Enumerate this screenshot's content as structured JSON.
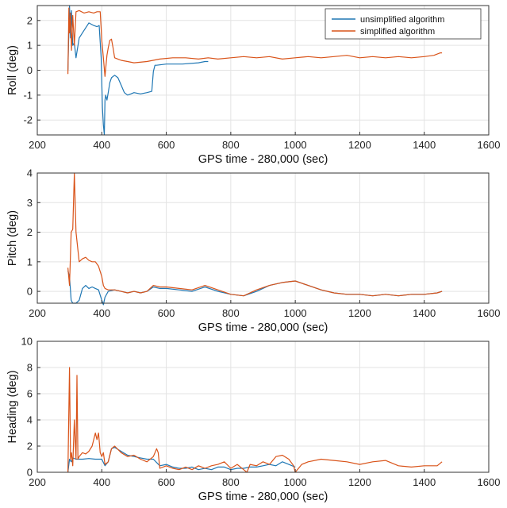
{
  "chart_data": [
    {
      "type": "line",
      "xlabel": "GPS time - 280,000 (sec)",
      "ylabel": "Roll (deg)",
      "xlim": [
        200,
        1600
      ],
      "ylim": [
        -2.6,
        2.6
      ],
      "xticks": [
        200,
        400,
        600,
        800,
        1000,
        1200,
        1400,
        1600
      ],
      "yticks": [
        -2,
        -1,
        0,
        1,
        2
      ],
      "grid": true,
      "legend": "top-right",
      "series": [
        {
          "name": "unsimplified algorithm",
          "color": "#1f77b4",
          "x": [
            295,
            300,
            303,
            306,
            310,
            315,
            320,
            330,
            345,
            360,
            375,
            385,
            392,
            398,
            402,
            405,
            408,
            410,
            412,
            416,
            420,
            425,
            430,
            440,
            450,
            460,
            470,
            480,
            490,
            500,
            520,
            540,
            555,
            560,
            565,
            570,
            600,
            650,
            700,
            720,
            730
          ],
          "values": [
            0.0,
            2.6,
            1.3,
            2.4,
            1.0,
            1.1,
            0.5,
            1.3,
            1.6,
            1.9,
            1.8,
            1.75,
            1.8,
            0.5,
            -1.5,
            -2.2,
            -2.6,
            -1.2,
            -1.0,
            -1.2,
            -0.9,
            -0.5,
            -0.3,
            -0.2,
            -0.3,
            -0.6,
            -0.9,
            -1.0,
            -0.95,
            -0.9,
            -0.95,
            -0.9,
            -0.85,
            -0.05,
            0.2,
            0.2,
            0.25,
            0.25,
            0.3,
            0.35,
            0.35
          ]
        },
        {
          "name": "simplified algorithm",
          "color": "#d95319",
          "x": [
            295,
            298,
            300,
            303,
            306,
            310,
            315,
            320,
            330,
            345,
            360,
            375,
            385,
            395,
            400,
            405,
            410,
            413,
            416,
            420,
            425,
            430,
            435,
            440,
            450,
            460,
            480,
            500,
            540,
            580,
            620,
            660,
            700,
            730,
            760,
            800,
            840,
            880,
            920,
            960,
            1000,
            1040,
            1080,
            1120,
            1160,
            1200,
            1240,
            1280,
            1320,
            1360,
            1400,
            1430,
            1450,
            1455
          ],
          "values": [
            -0.15,
            2.5,
            1.5,
            2.3,
            0.8,
            2.2,
            1.0,
            2.35,
            2.4,
            2.3,
            2.35,
            2.3,
            2.35,
            2.35,
            1.2,
            0.5,
            -0.25,
            0.2,
            0.6,
            0.9,
            1.2,
            1.25,
            0.9,
            0.5,
            0.45,
            0.4,
            0.35,
            0.3,
            0.35,
            0.45,
            0.5,
            0.5,
            0.45,
            0.5,
            0.45,
            0.5,
            0.55,
            0.5,
            0.55,
            0.45,
            0.5,
            0.55,
            0.5,
            0.55,
            0.6,
            0.5,
            0.55,
            0.5,
            0.55,
            0.5,
            0.55,
            0.6,
            0.7,
            0.7
          ]
        }
      ]
    },
    {
      "type": "line",
      "xlabel": "GPS time - 280,000 (sec)",
      "ylabel": "Pitch (deg)",
      "xlim": [
        200,
        1600
      ],
      "ylim": [
        -0.4,
        4
      ],
      "xticks": [
        200,
        400,
        600,
        800,
        1000,
        1200,
        1400,
        1600
      ],
      "yticks": [
        0,
        1,
        2,
        3,
        4
      ],
      "grid": true,
      "series": [
        {
          "name": "unsimplified algorithm",
          "color": "#1f77b4",
          "x": [
            295,
            300,
            305,
            310,
            320,
            330,
            340,
            350,
            360,
            370,
            380,
            390,
            400,
            405,
            410,
            420,
            440,
            460,
            480,
            500,
            520,
            540,
            560,
            580,
            600,
            640,
            680,
            720,
            760,
            800,
            840,
            880,
            920,
            960,
            1000,
            1040,
            1080,
            1120,
            1160,
            1200,
            1240,
            1280,
            1320,
            1360,
            1400,
            1440,
            1455
          ],
          "values": [
            0.7,
            0.5,
            -0.3,
            -0.4,
            -0.4,
            -0.3,
            0.1,
            0.2,
            0.1,
            0.15,
            0.1,
            0.05,
            -0.3,
            -0.45,
            -0.2,
            0.0,
            0.05,
            0.0,
            -0.05,
            0.0,
            -0.05,
            0.0,
            0.15,
            0.1,
            0.1,
            0.05,
            0.0,
            0.15,
            0.0,
            -0.1,
            -0.15,
            0.0,
            0.2,
            0.3,
            0.35,
            0.2,
            0.05,
            -0.05,
            -0.1,
            -0.1,
            -0.15,
            -0.1,
            -0.15,
            -0.1,
            -0.1,
            -0.05,
            0.0
          ]
        },
        {
          "name": "simplified algorithm",
          "color": "#d95319",
          "x": [
            295,
            300,
            305,
            310,
            315,
            320,
            325,
            330,
            340,
            350,
            360,
            370,
            380,
            390,
            400,
            405,
            410,
            420,
            440,
            460,
            480,
            500,
            520,
            540,
            560,
            580,
            600,
            640,
            680,
            720,
            760,
            800,
            840,
            880,
            920,
            960,
            1000,
            1040,
            1080,
            1120,
            1160,
            1200,
            1240,
            1280,
            1320,
            1360,
            1400,
            1440,
            1455
          ],
          "values": [
            0.8,
            0.2,
            2.0,
            2.1,
            4.0,
            2.0,
            1.5,
            1.0,
            1.1,
            1.15,
            1.05,
            1.0,
            1.0,
            0.85,
            0.5,
            0.2,
            0.1,
            0.05,
            0.05,
            0.0,
            -0.05,
            0.0,
            -0.05,
            0.0,
            0.2,
            0.15,
            0.15,
            0.1,
            0.05,
            0.2,
            0.05,
            -0.1,
            -0.15,
            0.05,
            0.2,
            0.3,
            0.35,
            0.2,
            0.05,
            -0.05,
            -0.1,
            -0.1,
            -0.15,
            -0.1,
            -0.15,
            -0.1,
            -0.1,
            -0.05,
            0.0
          ]
        }
      ]
    },
    {
      "type": "line",
      "xlabel": "GPS time - 280,000 (sec)",
      "ylabel": "Heading (deg)",
      "xlim": [
        200,
        1600
      ],
      "ylim": [
        0,
        10
      ],
      "xticks": [
        200,
        400,
        600,
        800,
        1000,
        1200,
        1400,
        1600
      ],
      "yticks": [
        0,
        2,
        4,
        6,
        8,
        10
      ],
      "grid": true,
      "series": [
        {
          "name": "unsimplified algorithm",
          "color": "#1f77b4",
          "x": [
            295,
            300,
            305,
            310,
            320,
            340,
            360,
            380,
            400,
            410,
            420,
            430,
            440,
            460,
            480,
            500,
            520,
            540,
            560,
            580,
            600,
            620,
            640,
            660,
            680,
            700,
            720,
            740,
            760,
            780,
            800,
            820,
            840,
            860,
            880,
            900,
            920,
            940,
            960,
            980,
            1000
          ],
          "values": [
            0.0,
            1.0,
            0.8,
            1.1,
            1.0,
            1.0,
            1.05,
            1.0,
            1.0,
            0.5,
            0.8,
            1.8,
            1.9,
            1.6,
            1.3,
            1.2,
            1.1,
            1.0,
            1.0,
            0.5,
            0.6,
            0.4,
            0.3,
            0.3,
            0.4,
            0.2,
            0.3,
            0.2,
            0.4,
            0.4,
            0.2,
            0.3,
            0.3,
            0.4,
            0.4,
            0.5,
            0.6,
            0.5,
            0.8,
            0.6,
            0.4
          ]
        },
        {
          "name": "simplified algorithm",
          "color": "#d95319",
          "x": [
            295,
            300,
            303,
            306,
            310,
            315,
            320,
            323,
            326,
            330,
            340,
            350,
            360,
            370,
            380,
            385,
            390,
            395,
            400,
            405,
            410,
            420,
            430,
            440,
            460,
            480,
            500,
            520,
            540,
            560,
            570,
            575,
            580,
            600,
            620,
            640,
            660,
            680,
            700,
            720,
            740,
            760,
            780,
            800,
            820,
            840,
            850,
            860,
            880,
            900,
            920,
            940,
            960,
            980,
            995,
            1000,
            1020,
            1040,
            1080,
            1120,
            1160,
            1200,
            1240,
            1280,
            1320,
            1360,
            1400,
            1440,
            1455
          ],
          "values": [
            0.0,
            8.0,
            1.0,
            1.5,
            0.5,
            4.0,
            1.0,
            7.4,
            1.0,
            1.2,
            1.5,
            1.4,
            1.6,
            2.0,
            3.0,
            2.5,
            3.0,
            1.5,
            1.2,
            1.5,
            0.6,
            0.8,
            1.8,
            2.0,
            1.5,
            1.2,
            1.3,
            1.0,
            0.8,
            1.2,
            1.8,
            1.5,
            0.3,
            0.5,
            0.3,
            0.2,
            0.4,
            0.2,
            0.5,
            0.3,
            0.5,
            0.6,
            0.8,
            0.3,
            0.6,
            0.2,
            0.0,
            0.6,
            0.5,
            0.8,
            0.6,
            1.2,
            1.3,
            1.0,
            0.5,
            0.0,
            0.6,
            0.8,
            1.0,
            0.9,
            0.8,
            0.6,
            0.8,
            0.9,
            0.5,
            0.4,
            0.5,
            0.5,
            0.8
          ]
        }
      ]
    }
  ]
}
